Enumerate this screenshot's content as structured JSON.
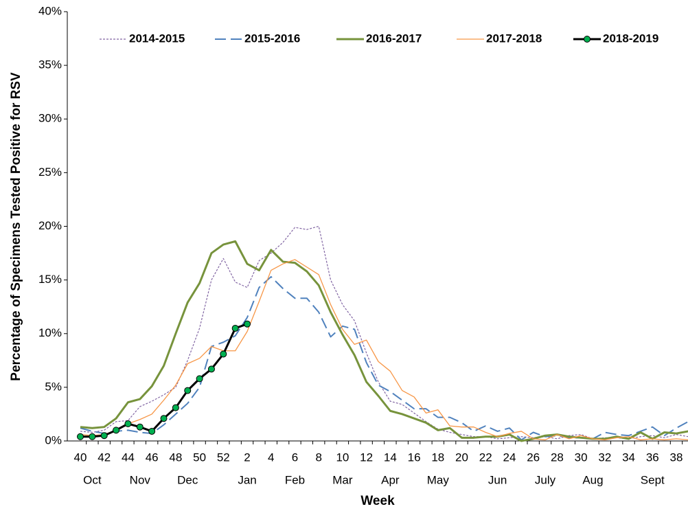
{
  "chart_data": {
    "type": "line",
    "y_label": "Percentage of Specimens Tested Positive for RSV",
    "x_label": "Week",
    "categories": [
      "40",
      null,
      "42",
      null,
      "44",
      null,
      "46",
      null,
      "48",
      null,
      "50",
      null,
      "52",
      null,
      "2",
      null,
      "4",
      null,
      "6",
      null,
      "8",
      null,
      "10",
      null,
      "12",
      null,
      "14",
      null,
      "16",
      null,
      "18",
      null,
      "20",
      null,
      "22",
      null,
      "24",
      null,
      "26",
      null,
      "28",
      null,
      "30",
      null,
      "32",
      null,
      "34",
      null,
      "36",
      null,
      "38",
      null
    ],
    "month_labels": [
      null,
      "Oct",
      null,
      null,
      null,
      "Nov",
      null,
      null,
      null,
      "Dec",
      null,
      null,
      null,
      null,
      "Jan",
      null,
      null,
      null,
      "Feb",
      null,
      null,
      null,
      "Mar",
      null,
      null,
      null,
      "Apr",
      null,
      null,
      null,
      "May",
      null,
      null,
      null,
      null,
      "Jun",
      null,
      null,
      null,
      "July",
      null,
      null,
      null,
      "Aug",
      null,
      null,
      null,
      null,
      "Sept",
      null,
      null,
      null
    ],
    "ylim": [
      0,
      40
    ],
    "yticks": [
      {
        "value": 0,
        "label": "0%"
      },
      {
        "value": 5,
        "label": "5%"
      },
      {
        "value": 10,
        "label": "10%"
      },
      {
        "value": 15,
        "label": "15%"
      },
      {
        "value": 20,
        "label": "20%"
      },
      {
        "value": 25,
        "label": "25%"
      },
      {
        "value": 30,
        "label": "30%"
      },
      {
        "value": 35,
        "label": "35%"
      },
      {
        "value": 40,
        "label": "40%"
      }
    ],
    "legend": "top",
    "series": [
      {
        "name": "2014-2015",
        "color": "#8064a2",
        "style": "dotted",
        "markers": false,
        "values": [
          0.9,
          0.8,
          1.0,
          1.8,
          1.9,
          3.2,
          3.7,
          4.3,
          5.0,
          7.5,
          10.5,
          15.0,
          17.0,
          14.8,
          14.3,
          16.8,
          17.5,
          18.5,
          19.9,
          19.7,
          20.0,
          15.0,
          12.7,
          11.2,
          8.2,
          5.5,
          3.7,
          3.4,
          2.6,
          1.8,
          1.1,
          0.8,
          0.6,
          0.4,
          0.4,
          0.2,
          0.3,
          0.4,
          0.3,
          0.4,
          0.2,
          0.5,
          0.6,
          0.2,
          0.3,
          0.3,
          0.2,
          0.4,
          0.5,
          0.3,
          0.6,
          0.4
        ]
      },
      {
        "name": "2015-2016",
        "color": "#4f81bd",
        "style": "dashed",
        "markers": false,
        "values": [
          1.2,
          0.9,
          0.7,
          0.9,
          1.0,
          0.8,
          0.7,
          1.5,
          2.5,
          3.5,
          5.0,
          8.8,
          9.2,
          9.8,
          11.5,
          14.3,
          15.3,
          14.2,
          13.3,
          13.3,
          12.0,
          9.7,
          10.7,
          10.4,
          7.3,
          5.2,
          4.6,
          3.8,
          3.0,
          3.0,
          2.2,
          2.2,
          1.7,
          0.9,
          1.4,
          0.9,
          1.2,
          0.1,
          0.8,
          0.4,
          0.5,
          0.3,
          0.3,
          0.2,
          0.8,
          0.6,
          0.5,
          0.9,
          1.3,
          0.5,
          1.2,
          1.8
        ]
      },
      {
        "name": "2016-2017",
        "color": "#77933c",
        "style": "solid",
        "markers": false,
        "values": [
          1.3,
          1.2,
          1.3,
          2.1,
          3.6,
          3.9,
          5.1,
          7.0,
          10.0,
          12.9,
          14.7,
          17.5,
          18.3,
          18.6,
          16.5,
          15.9,
          17.8,
          16.7,
          16.6,
          15.8,
          14.5,
          12.0,
          9.9,
          8.0,
          5.5,
          4.2,
          2.8,
          2.5,
          2.1,
          1.7,
          1.0,
          1.2,
          0.3,
          0.3,
          0.4,
          0.4,
          0.6,
          0.0,
          0.2,
          0.5,
          0.6,
          0.4,
          0.3,
          0.2,
          0.2,
          0.4,
          0.2,
          0.8,
          0.2,
          0.8,
          0.7,
          0.9
        ]
      },
      {
        "name": "2017-2018",
        "color": "#f79646",
        "style": "thin",
        "markers": false,
        "values": [
          0.6,
          0.5,
          0.6,
          1.0,
          1.6,
          2.0,
          2.5,
          3.8,
          5.2,
          7.2,
          7.7,
          8.8,
          8.4,
          8.4,
          10.2,
          13.0,
          15.9,
          16.5,
          16.9,
          16.2,
          15.5,
          12.7,
          10.4,
          9.0,
          9.4,
          7.4,
          6.5,
          4.7,
          4.1,
          2.6,
          2.9,
          1.4,
          1.3,
          1.3,
          0.8,
          0.4,
          0.7,
          0.9,
          0.2,
          0.1,
          0.6,
          0.2,
          0.5,
          0.2,
          0.1,
          0.3,
          0.4,
          0.1,
          0.2,
          0.1,
          0.2,
          0.1
        ]
      },
      {
        "name": "2018-2019",
        "color": "#000000",
        "marker_color": "#00b050",
        "style": "bold",
        "markers": true,
        "values": [
          0.4,
          0.4,
          0.5,
          1.0,
          1.6,
          1.3,
          0.9,
          2.1,
          3.1,
          4.7,
          5.8,
          6.7,
          8.1,
          10.5,
          10.9,
          null,
          null,
          null,
          null,
          null,
          null,
          null,
          null,
          null,
          null,
          null,
          null,
          null,
          null,
          null,
          null,
          null,
          null,
          null,
          null,
          null,
          null,
          null,
          null,
          null,
          null,
          null,
          null,
          null,
          null,
          null,
          null,
          null,
          null,
          null,
          null,
          null
        ]
      }
    ]
  }
}
